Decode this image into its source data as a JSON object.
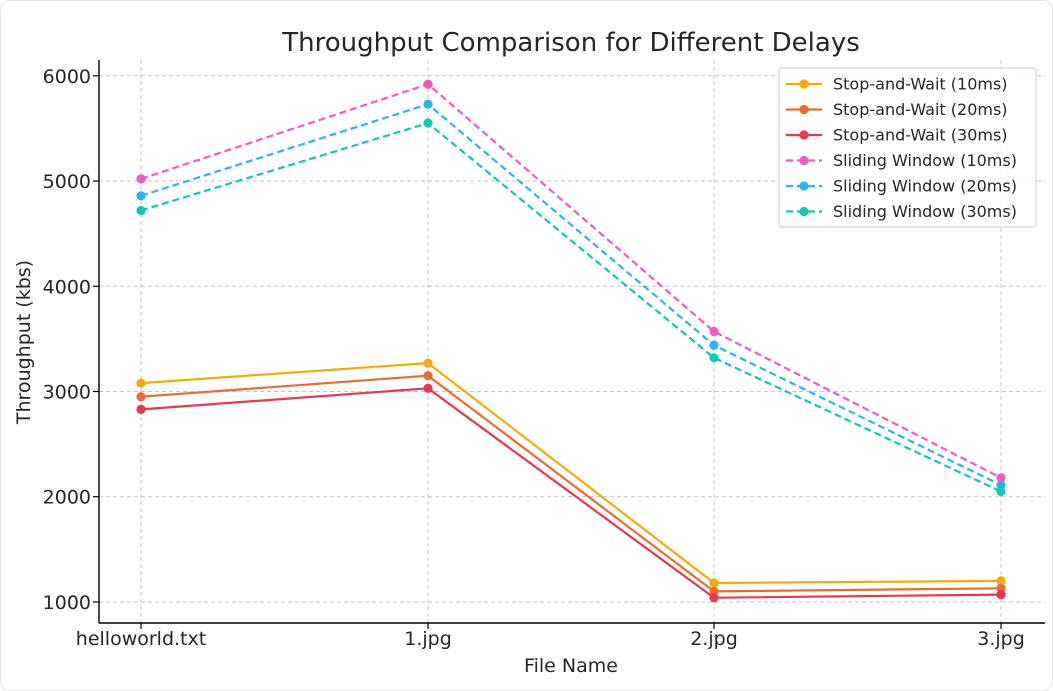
{
  "chart_data": {
    "type": "line",
    "title": "Throughput Comparison for Different Delays",
    "xlabel": "File Name",
    "ylabel": "Throughput (kbs)",
    "categories": [
      "helloworld.txt",
      "1.jpg",
      "2.jpg",
      "3.jpg"
    ],
    "ylim": [
      800,
      6150
    ],
    "yticks": [
      1000,
      2000,
      3000,
      4000,
      5000,
      6000
    ],
    "grid": true,
    "legend_position": "top-right",
    "series": [
      {
        "name": "Stop-and-Wait (10ms)",
        "values": [
          3080,
          3270,
          1180,
          1200
        ],
        "color": "#f5ab00",
        "dashed": false
      },
      {
        "name": "Stop-and-Wait (20ms)",
        "values": [
          2950,
          3150,
          1100,
          1130
        ],
        "color": "#ee6a2a",
        "dashed": false
      },
      {
        "name": "Stop-and-Wait (30ms)",
        "values": [
          2830,
          3030,
          1040,
          1070
        ],
        "color": "#e8374f",
        "dashed": false
      },
      {
        "name": "Sliding Window (10ms)",
        "values": [
          5020,
          5920,
          3570,
          2180
        ],
        "color": "#f457c6",
        "dashed": true
      },
      {
        "name": "Sliding Window (20ms)",
        "values": [
          4860,
          5730,
          3440,
          2110
        ],
        "color": "#25b7ee",
        "dashed": true
      },
      {
        "name": "Sliding Window (30ms)",
        "values": [
          4720,
          5550,
          3320,
          2050
        ],
        "color": "#0ec9b4",
        "dashed": true
      }
    ]
  }
}
